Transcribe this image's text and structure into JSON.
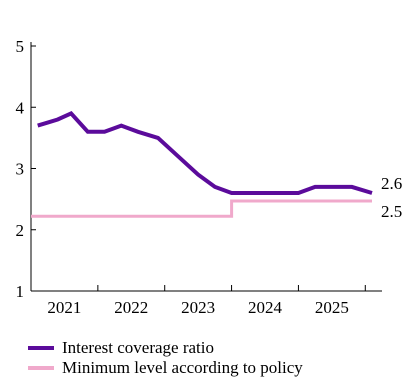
{
  "chart_data": {
    "type": "line",
    "title": "",
    "xlabel": "",
    "ylabel": "",
    "ylim": [
      1,
      5
    ],
    "xlim": [
      2020.5,
      2025.75
    ],
    "yticks": [
      "1",
      "2",
      "3",
      "4",
      "5"
    ],
    "xticks": [
      "2021",
      "2022",
      "2023",
      "2024",
      "2025"
    ],
    "grid": false,
    "legend_position": "bottom",
    "series": [
      {
        "name": "Interest coverage ratio",
        "color": "#5b0b9b",
        "end_label": "2.6",
        "points": [
          [
            2020.6,
            3.7
          ],
          [
            2020.75,
            3.75
          ],
          [
            2020.9,
            3.8
          ],
          [
            2021.1,
            3.9
          ],
          [
            2021.35,
            3.6
          ],
          [
            2021.6,
            3.6
          ],
          [
            2021.85,
            3.7
          ],
          [
            2022.1,
            3.6
          ],
          [
            2022.4,
            3.5
          ],
          [
            2022.7,
            3.2
          ],
          [
            2023.0,
            2.9
          ],
          [
            2023.25,
            2.7
          ],
          [
            2023.5,
            2.6
          ],
          [
            2024.0,
            2.6
          ],
          [
            2024.5,
            2.6
          ],
          [
            2024.75,
            2.7
          ],
          [
            2025.0,
            2.7
          ],
          [
            2025.3,
            2.7
          ],
          [
            2025.6,
            2.6
          ]
        ]
      },
      {
        "name": "Minimum level according to policy",
        "color": "#f0a9cb",
        "end_label": "2.5",
        "points": [
          [
            2020.5,
            2.22
          ],
          [
            2023.5,
            2.22
          ],
          [
            2023.5,
            2.47
          ],
          [
            2025.6,
            2.47
          ]
        ]
      }
    ]
  }
}
